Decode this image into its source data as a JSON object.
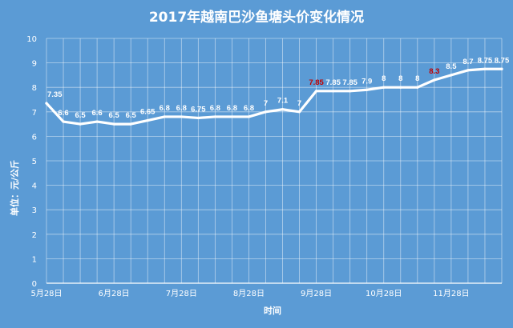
{
  "chart_data": {
    "type": "line",
    "title": "2017年越南巴沙鱼塘头价变化情况",
    "xlabel": "时间",
    "ylabel": "单位：元/公斤",
    "ylim": [
      0,
      10
    ],
    "yticks": [
      0,
      1,
      2,
      3,
      4,
      5,
      6,
      7,
      8,
      9,
      10
    ],
    "xtick_labels": [
      "5月28日",
      "6月28日",
      "7月28日",
      "8月28日",
      "9月28日",
      "10月28日",
      "11月28日"
    ],
    "grid": true,
    "legend": "none",
    "series": [
      {
        "values": [
          7.35,
          6.6,
          6.5,
          6.6,
          6.5,
          6.5,
          6.65,
          6.8,
          6.8,
          6.75,
          6.8,
          6.8,
          6.8,
          7,
          7.1,
          7,
          7.85,
          7.85,
          7.85,
          7.9,
          8,
          8,
          8,
          8.3,
          8.5,
          8.7,
          8.75,
          8.75
        ],
        "labels": [
          "7.35",
          "6.6",
          "6.5",
          "6.6",
          "6.5",
          "6.5",
          "6.65",
          "6.8",
          "6.8",
          "6.75",
          "6.8",
          "6.8",
          "6.8",
          "7",
          "7.1",
          "7",
          "7.85",
          "7.85",
          "7.85",
          "7.9",
          "8",
          "8",
          "8",
          "8.3",
          "8.5",
          "8.7",
          "8.75",
          "8.75"
        ]
      }
    ],
    "highlight_points": [
      16,
      23
    ],
    "colors": {
      "background": "#5b9bd5",
      "line": "#ffffff",
      "grid": "#ffffff",
      "text": "#ffffff",
      "highlight_label": "#c00000"
    }
  }
}
